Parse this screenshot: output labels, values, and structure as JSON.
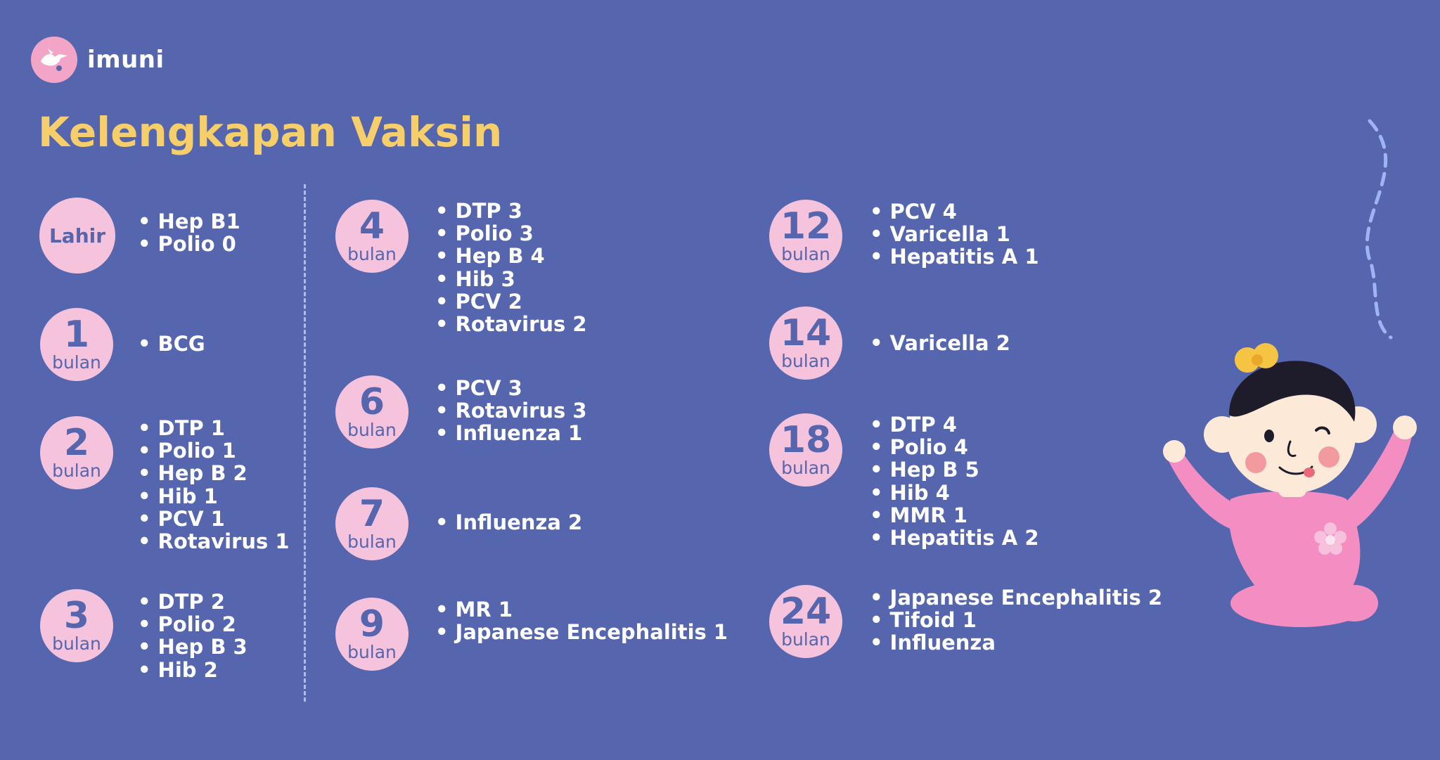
{
  "brand": {
    "name": "imuni"
  },
  "title": "Kelengkapan Vaksin",
  "colors": {
    "background": "#5566ae",
    "badge": "#f6c3dc",
    "title": "#f7cf6a",
    "text": "#ffffff"
  },
  "schedule": [
    {
      "label": "Lahir",
      "items": [
        "Hep B1",
        "Polio 0"
      ]
    },
    {
      "num": "1",
      "unit": "bulan",
      "items": [
        "BCG"
      ]
    },
    {
      "num": "2",
      "unit": "bulan",
      "items": [
        "DTP 1",
        "Polio 1",
        "Hep B 2",
        "Hib 1",
        "PCV 1",
        "Rotavirus 1"
      ]
    },
    {
      "num": "3",
      "unit": "bulan",
      "items": [
        "DTP 2",
        "Polio 2",
        "Hep B 3",
        "Hib 2"
      ]
    },
    {
      "num": "4",
      "unit": "bulan",
      "items": [
        "DTP 3",
        "Polio 3",
        "Hep B 4",
        "Hib 3",
        "PCV 2",
        "Rotavirus 2"
      ]
    },
    {
      "num": "6",
      "unit": "bulan",
      "items": [
        "PCV 3",
        "Rotavirus 3",
        "Influenza 1"
      ]
    },
    {
      "num": "7",
      "unit": "bulan",
      "items": [
        "Influenza 2"
      ]
    },
    {
      "num": "9",
      "unit": "bulan",
      "items": [
        "MR 1",
        "Japanese Encephalitis 1"
      ]
    },
    {
      "num": "12",
      "unit": "bulan",
      "items": [
        "PCV 4",
        "Varicella 1",
        "Hepatitis A 1"
      ]
    },
    {
      "num": "14",
      "unit": "bulan",
      "items": [
        "Varicella 2"
      ]
    },
    {
      "num": "18",
      "unit": "bulan",
      "items": [
        "DTP 4",
        "Polio 4",
        "Hep B 5",
        "Hib 4",
        "MMR 1",
        "Hepatitis A 2"
      ]
    },
    {
      "num": "24",
      "unit": "bulan",
      "items": [
        "Japanese Encephalitis 2",
        "Tifoid 1",
        "Influenza"
      ]
    }
  ]
}
